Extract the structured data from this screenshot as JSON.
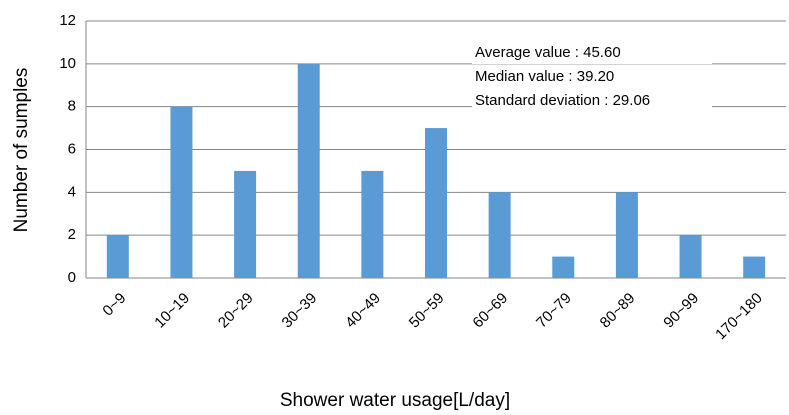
{
  "chart_data": {
    "type": "bar",
    "xlabel": "Shower water usage[L/day]",
    "ylabel": "Number of sumples",
    "annotations": [
      "Average value : 45.60",
      "Median value : 39.20",
      "Standard deviation : 29.06"
    ],
    "categories": [
      "0~9",
      "10~19",
      "20~29",
      "30~39",
      "40~49",
      "50~59",
      "60~69",
      "70~79",
      "80~89",
      "90~99",
      "170~180"
    ],
    "values": [
      2,
      8,
      5,
      10,
      5,
      7,
      4,
      1,
      4,
      2,
      1
    ],
    "color": "#5b9bd5",
    "ylim": [
      0,
      12
    ],
    "yticks": [
      0,
      2,
      4,
      6,
      8,
      10,
      12
    ],
    "grid": true
  }
}
